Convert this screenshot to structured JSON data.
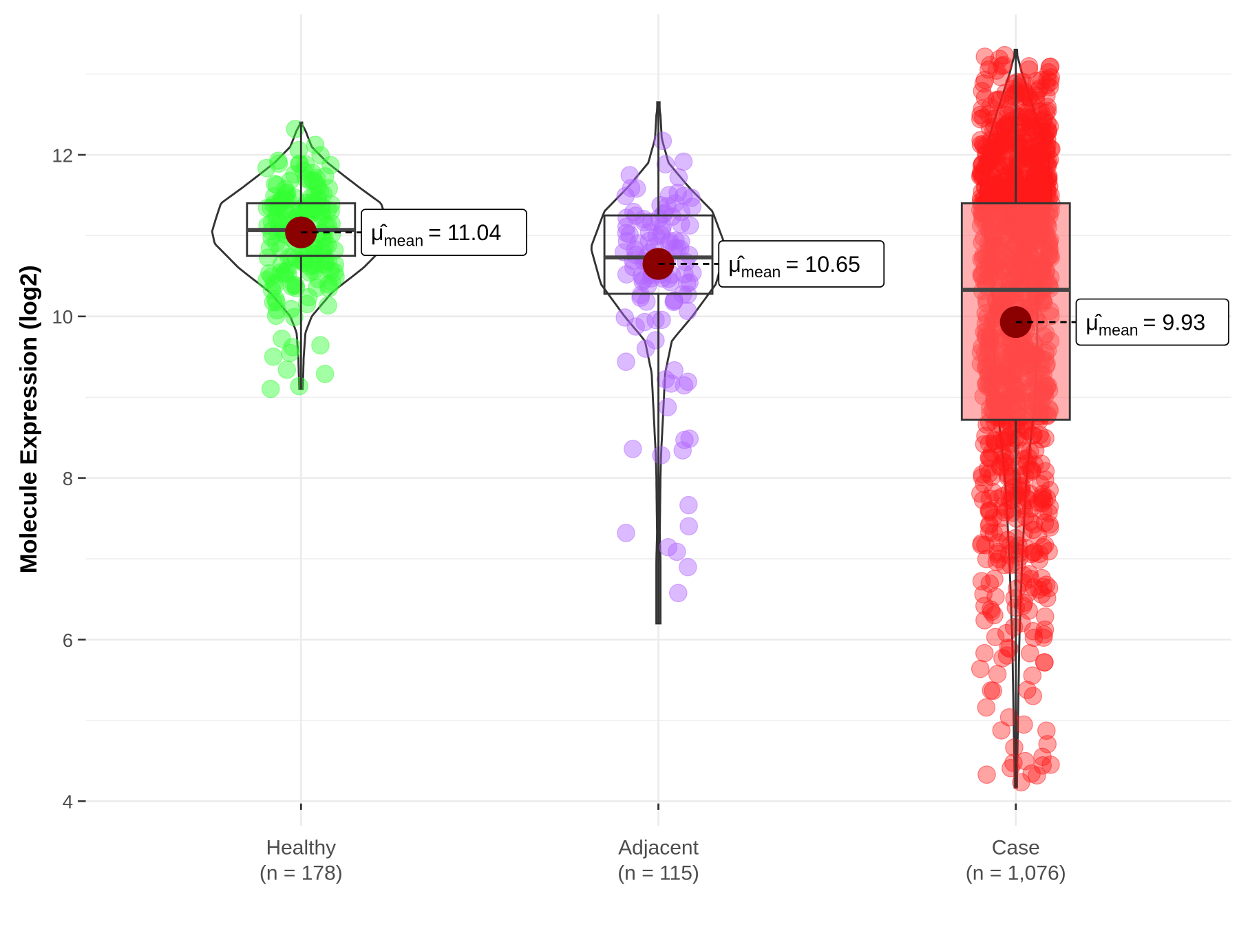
{
  "chart_data": {
    "type": "violin-box-scatter",
    "title": "",
    "xlabel": "",
    "ylabel": "Molecule Expression (log2)",
    "ylim": [
      3.8,
      13.8
    ],
    "yticks": [
      4,
      6,
      8,
      10,
      12
    ],
    "ytick_labels": [
      "4",
      "6",
      "8",
      "10",
      "12"
    ],
    "grid": true,
    "groups": [
      {
        "name": "Healthy",
        "n_label": "(n = 178)",
        "n": 178,
        "color": "#33ff33",
        "box": {
          "q1": 10.75,
          "median": 11.07,
          "q3": 11.4
        },
        "min": 9.1,
        "max": 12.4,
        "mean": 11.04,
        "mean_label": "= 11.04",
        "max_width": 1.0,
        "density": [
          [
            9.1,
            0.02
          ],
          [
            9.5,
            0.03
          ],
          [
            9.8,
            0.05
          ],
          [
            10.0,
            0.12
          ],
          [
            10.3,
            0.35
          ],
          [
            10.6,
            0.7
          ],
          [
            10.9,
            0.97
          ],
          [
            11.05,
            1.0
          ],
          [
            11.2,
            0.96
          ],
          [
            11.4,
            0.9
          ],
          [
            11.6,
            0.65
          ],
          [
            11.9,
            0.3
          ],
          [
            12.1,
            0.12
          ],
          [
            12.3,
            0.05
          ],
          [
            12.4,
            0.0
          ]
        ]
      },
      {
        "name": "Adjacent",
        "n_label": "(n = 115)",
        "n": 115,
        "color": "#b266ff",
        "box": {
          "q1": 10.28,
          "median": 10.73,
          "q3": 11.25
        },
        "min": 6.2,
        "max": 12.65,
        "mean": 10.65,
        "mean_label": "= 10.65",
        "max_width": 0.76,
        "density": [
          [
            6.2,
            0.03
          ],
          [
            7.0,
            0.03
          ],
          [
            7.3,
            0.02
          ],
          [
            8.0,
            0.03
          ],
          [
            8.3,
            0.04
          ],
          [
            8.8,
            0.07
          ],
          [
            9.3,
            0.1
          ],
          [
            9.7,
            0.2
          ],
          [
            10.0,
            0.5
          ],
          [
            10.4,
            0.85
          ],
          [
            10.85,
            1.0
          ],
          [
            11.3,
            0.8
          ],
          [
            11.6,
            0.45
          ],
          [
            11.9,
            0.15
          ],
          [
            12.2,
            0.05
          ],
          [
            12.5,
            0.03
          ],
          [
            12.65,
            0.0
          ]
        ]
      },
      {
        "name": "Case",
        "n_label": "(n = 1,076)",
        "n": 1076,
        "color": "#ff1a1a",
        "box": {
          "q1": 8.72,
          "median": 10.33,
          "q3": 11.4
        },
        "min": 4.17,
        "max": 13.3,
        "mean": 9.93,
        "mean_label": "= 9.93",
        "max_width": 0.4,
        "density": [
          [
            4.17,
            0.03
          ],
          [
            5.0,
            0.06
          ],
          [
            6.0,
            0.1
          ],
          [
            7.0,
            0.18
          ],
          [
            8.0,
            0.3
          ],
          [
            8.8,
            0.5
          ],
          [
            9.5,
            0.6
          ],
          [
            10.0,
            0.6
          ],
          [
            10.5,
            0.65
          ],
          [
            11.0,
            0.85
          ],
          [
            11.5,
            1.0
          ],
          [
            12.0,
            0.9
          ],
          [
            12.5,
            0.55
          ],
          [
            13.0,
            0.18
          ],
          [
            13.3,
            0.0
          ]
        ]
      }
    ],
    "mean_symbol": "μ̂",
    "mean_subscript": "mean"
  }
}
